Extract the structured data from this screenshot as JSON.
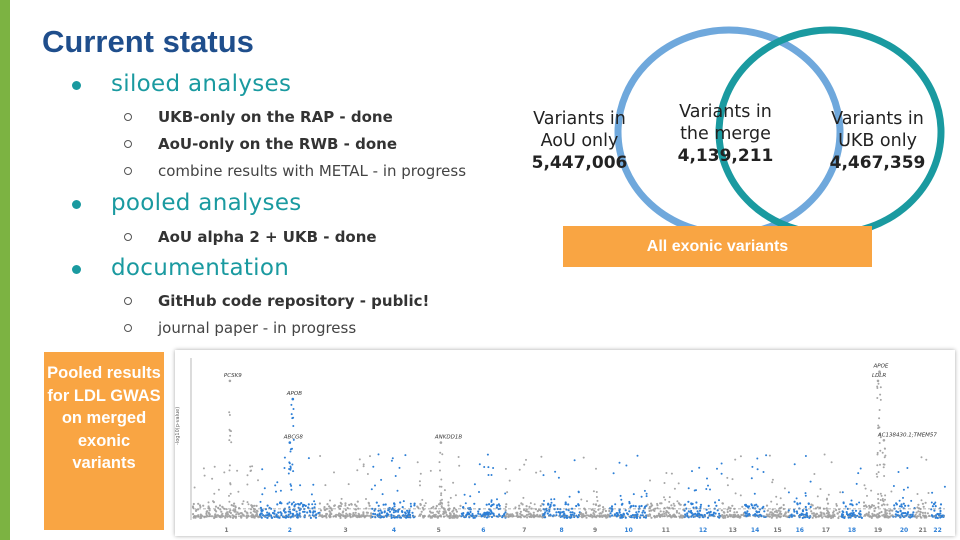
{
  "slide": {
    "title": "Current status",
    "sections": [
      {
        "heading": "siloed analyses",
        "items": [
          {
            "text": "UKB-only on the RAP - done",
            "bold": true
          },
          {
            "text": "AoU-only on the RWB - done",
            "bold": true
          },
          {
            "text": "combine results with METAL - in progress",
            "bold": false
          }
        ]
      },
      {
        "heading": "pooled analyses",
        "items": [
          {
            "text": "AoU alpha 2 + UKB - done",
            "bold": true
          }
        ]
      },
      {
        "heading": "documentation",
        "items": [
          {
            "text": "GitHub code repository - public!",
            "bold": true
          },
          {
            "text": "journal paper - in progress",
            "bold": false
          }
        ]
      }
    ]
  },
  "venn": {
    "left_label": "Variants in AoU only",
    "left_value": "5,447,006",
    "middle_label": "Variants in the merge",
    "middle_value": "4,139,211",
    "right_label": "Variants in UKB only",
    "right_value": "4,467,359",
    "caption": "All exonic variants",
    "left_color": "#6fa8dc",
    "right_color": "#1a9aa0"
  },
  "plot_caption": "Pooled results for LDL GWAS on merged exonic variants",
  "manhattan": {
    "gene_labels": [
      "PCSK9",
      "APOB",
      "ABCG8",
      "ANKDD1B",
      "APOE",
      "LDLR",
      "AC138430.1;TMEM57"
    ],
    "chromosomes": [
      "1",
      "2",
      "3",
      "4",
      "5",
      "6",
      "7",
      "8",
      "9",
      "10",
      "11",
      "12",
      "13",
      "14",
      "15",
      "16",
      "17",
      "18",
      "19",
      "20",
      "21",
      "22"
    ],
    "y_axis_label": "-log10(p-value)",
    "colors": {
      "odd": "#a6a6a6",
      "even": "#2d7fd6",
      "threshold": "#999999"
    }
  },
  "chart_data": {
    "type": "scatter",
    "title": "",
    "xlabel": "",
    "ylabel": "-log10(p-value)",
    "categories": [
      "1",
      "2",
      "3",
      "4",
      "5",
      "6",
      "7",
      "8",
      "9",
      "10",
      "11",
      "12",
      "13",
      "14",
      "15",
      "16",
      "17",
      "18",
      "19",
      "20",
      "21",
      "22"
    ],
    "ylim": [
      0,
      350
    ],
    "peaks": [
      {
        "chrom": "1",
        "label": "PCSK9",
        "value": 300
      },
      {
        "chrom": "2",
        "label": "APOB",
        "value": 260
      },
      {
        "chrom": "2",
        "label": "ABCG8",
        "value": 165
      },
      {
        "chrom": "5",
        "label": "ANKDD1B",
        "value": 165
      },
      {
        "chrom": "19",
        "label": "APOE",
        "value": 320
      },
      {
        "chrom": "19",
        "label": "LDLR",
        "value": 300
      },
      {
        "chrom": "19",
        "label": "AC138430.1;TMEM57",
        "value": 170
      }
    ]
  }
}
